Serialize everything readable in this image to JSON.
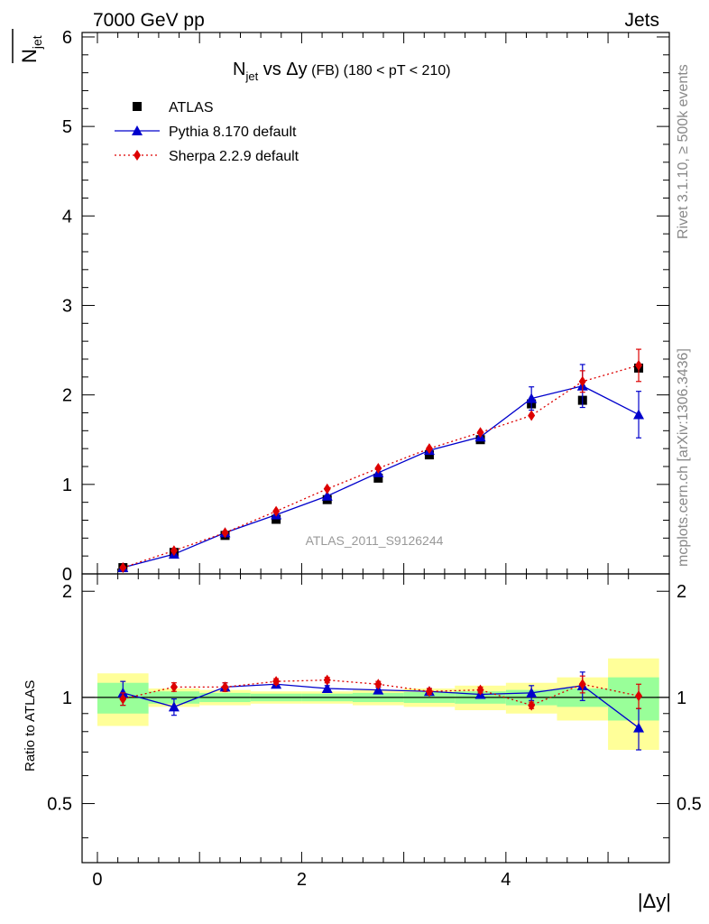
{
  "header": {
    "left": "7000 GeV pp",
    "right": "Jets"
  },
  "side_labels": {
    "rivet": "Rivet 3.1.10, ≥ 500k events",
    "mcplots": "mcplots.cern.ch [arXiv:1306.3436]"
  },
  "chart_data": {
    "type": "scatter",
    "title": "N_jet vs Δy (FB) (180 < pT < 210)",
    "title_parts": {
      "main": "N",
      "sub": "jet",
      "rest": " vs Δy",
      "fb": " (FB)",
      "range": " (180 < pT < 210)"
    },
    "ylabel_main": "N",
    "ylabel_sub": "jet",
    "ylabel_ratio": "Ratio to ATLAS",
    "xlabel": "|Δy|",
    "watermark": "ATLAS_2011_S9126244",
    "xlim": [
      -0.15,
      5.6
    ],
    "ylim": [
      0,
      6.05
    ],
    "ratio_ylim": [
      0.34,
      2.24
    ],
    "x_ticks": [
      0,
      2,
      4
    ],
    "y_ticks": [
      0,
      1,
      2,
      3,
      4,
      5,
      6
    ],
    "ratio_ticks": [
      0.5,
      1,
      2
    ],
    "bins": [
      {
        "lo": 0.0,
        "hi": 0.5
      },
      {
        "lo": 0.5,
        "hi": 1.0
      },
      {
        "lo": 1.0,
        "hi": 1.5
      },
      {
        "lo": 1.5,
        "hi": 2.0
      },
      {
        "lo": 2.0,
        "hi": 2.5
      },
      {
        "lo": 2.5,
        "hi": 3.0
      },
      {
        "lo": 3.0,
        "hi": 3.5
      },
      {
        "lo": 3.5,
        "hi": 4.0
      },
      {
        "lo": 4.0,
        "hi": 4.5
      },
      {
        "lo": 4.5,
        "hi": 5.0
      },
      {
        "lo": 5.0,
        "hi": 5.5
      }
    ],
    "x": [
      0.25,
      0.75,
      1.25,
      1.75,
      2.25,
      2.75,
      3.25,
      3.75,
      4.25,
      4.75,
      5.3
    ],
    "series": [
      {
        "name": "ATLAS",
        "style": "data",
        "color": "#000000",
        "values": [
          0.07,
          0.24,
          0.43,
          0.61,
          0.83,
          1.07,
          1.33,
          1.5,
          1.9,
          1.94,
          2.3
        ]
      },
      {
        "name": "Pythia 8.170 default",
        "style": "solid-triangle",
        "color": "#0000cc",
        "values": [
          0.07,
          0.22,
          0.46,
          0.66,
          0.87,
          1.13,
          1.38,
          1.53,
          1.96,
          2.1,
          1.78
        ],
        "errors": [
          0,
          0,
          0,
          0,
          0,
          0,
          0,
          0,
          0.13,
          0.24,
          0.26
        ],
        "ratio": [
          1.03,
          0.94,
          1.07,
          1.09,
          1.06,
          1.05,
          1.04,
          1.02,
          1.03,
          1.08,
          0.82
        ],
        "ratio_errors": [
          0.08,
          0.05,
          0.03,
          0.02,
          0.02,
          0.02,
          0.02,
          0.02,
          0.05,
          0.1,
          0.11
        ]
      },
      {
        "name": "Sherpa 2.2.9 default",
        "style": "dotted-diamond",
        "color": "#dd0000",
        "values": [
          0.07,
          0.26,
          0.46,
          0.7,
          0.95,
          1.18,
          1.4,
          1.58,
          1.77,
          2.15,
          2.33
        ],
        "errors": [
          0,
          0,
          0,
          0,
          0,
          0,
          0,
          0,
          0,
          0.12,
          0.18
        ],
        "ratio": [
          0.99,
          1.07,
          1.07,
          1.11,
          1.12,
          1.09,
          1.04,
          1.05,
          0.95,
          1.09,
          1.01
        ],
        "ratio_errors": [
          0.04,
          0.03,
          0.03,
          0.02,
          0.02,
          0.02,
          0.02,
          0.02,
          0.02,
          0.06,
          0.08
        ]
      }
    ],
    "ratio_bands": {
      "yellow_color": "#ffff99",
      "green_color": "#99ff99",
      "yellow_half_width": [
        0.17,
        0.06,
        0.05,
        0.04,
        0.04,
        0.05,
        0.06,
        0.08,
        0.1,
        0.14,
        0.29
      ],
      "green_half_width": [
        0.1,
        0.04,
        0.03,
        0.025,
        0.025,
        0.03,
        0.035,
        0.04,
        0.05,
        0.06,
        0.14
      ]
    },
    "legend_position": "top-left"
  }
}
